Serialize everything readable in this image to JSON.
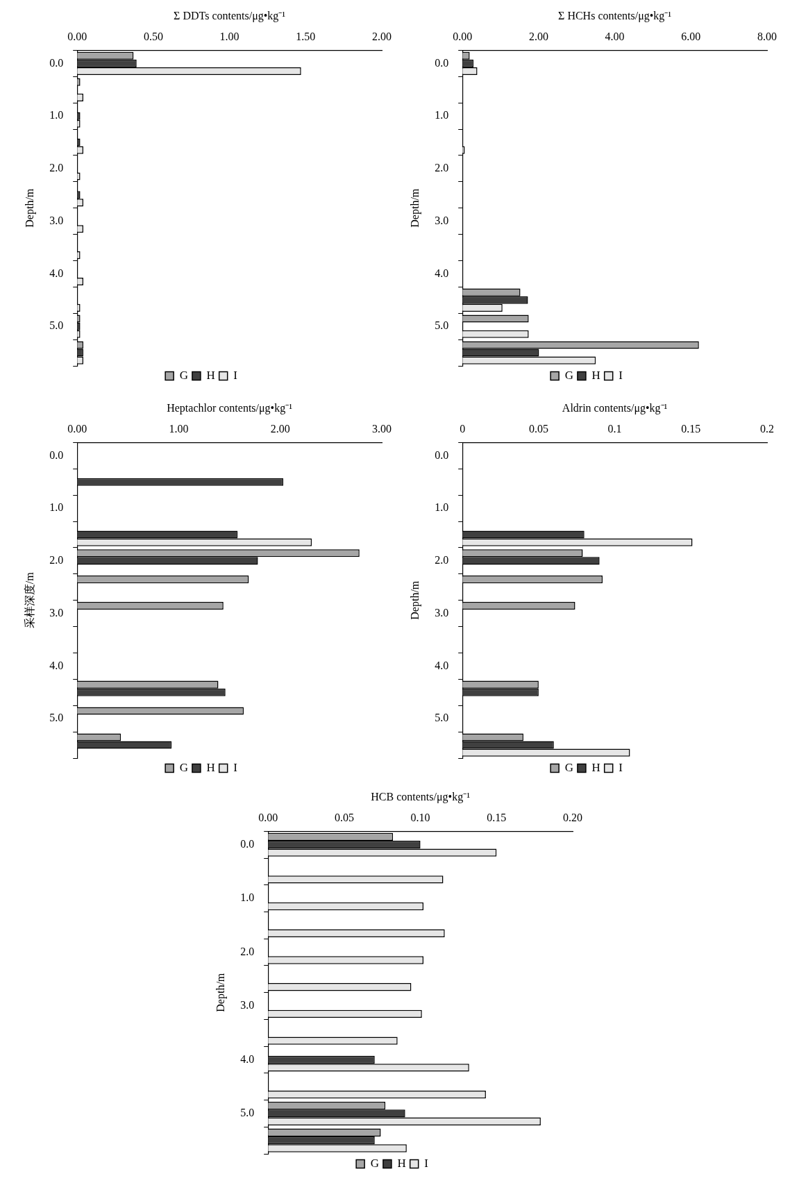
{
  "chart_data": [
    {
      "type": "bar",
      "orientation": "horizontal",
      "xlabel": "Σ DDTs contents/μg•kg⁻¹",
      "ylabel": "Depth/m",
      "legend": "bottom",
      "categories": [
        "0.0",
        null,
        "1.0",
        null,
        "2.0",
        null,
        "3.0",
        null,
        "4.0",
        null,
        "5.0",
        null
      ],
      "xlim": [
        0,
        2
      ],
      "xticks": [
        {
          "value": 0,
          "label": "0.00"
        },
        {
          "value": 0.5,
          "label": "0.50"
        },
        {
          "value": 1,
          "label": "1.00"
        },
        {
          "value": 1.5,
          "label": "1.50"
        },
        {
          "value": 2,
          "label": "2.00"
        }
      ],
      "series": [
        {
          "name": "G",
          "color": "#a6a6a6",
          "values": [
            0.37,
            0.02,
            null,
            null,
            null,
            null,
            null,
            null,
            null,
            null,
            0.02,
            0.04
          ]
        },
        {
          "name": "H",
          "color": "#404040",
          "values": [
            0.39,
            null,
            0.02,
            0.02,
            null,
            0.02,
            null,
            null,
            null,
            null,
            0.02,
            0.04
          ]
        },
        {
          "name": "I",
          "color": "#e6e6e6",
          "values": [
            1.47,
            0.04,
            0.02,
            0.04,
            0.02,
            0.04,
            0.04,
            0.02,
            0.04,
            0.02,
            0.02,
            0.04
          ]
        }
      ]
    },
    {
      "type": "bar",
      "orientation": "horizontal",
      "xlabel": "Σ HCHs contents/μg•kg⁻¹",
      "ylabel": "Depth/m",
      "legend": "bottom",
      "categories": [
        "0.0",
        null,
        "1.0",
        null,
        "2.0",
        null,
        "3.0",
        null,
        "4.0",
        null,
        "5.0",
        null
      ],
      "xlim": [
        0,
        8
      ],
      "xticks": [
        {
          "value": 0,
          "label": "0.00"
        },
        {
          "value": 2,
          "label": "2.00"
        },
        {
          "value": 4,
          "label": "4.00"
        },
        {
          "value": 6,
          "label": "6.00"
        },
        {
          "value": 8,
          "label": "8.00"
        }
      ],
      "series": [
        {
          "name": "G",
          "color": "#a6a6a6",
          "values": [
            0.19,
            null,
            null,
            null,
            null,
            null,
            null,
            null,
            null,
            1.52,
            1.74,
            6.21
          ]
        },
        {
          "name": "H",
          "color": "#404040",
          "values": [
            0.29,
            null,
            null,
            null,
            null,
            null,
            null,
            null,
            null,
            1.72,
            null,
            2.01
          ]
        },
        {
          "name": "I",
          "color": "#e6e6e6",
          "values": [
            0.39,
            null,
            null,
            0.06,
            null,
            null,
            null,
            null,
            null,
            1.05,
            1.74,
            3.5
          ]
        }
      ]
    },
    {
      "type": "bar",
      "orientation": "horizontal",
      "xlabel": "Heptachlor contents/μg•kg⁻¹",
      "ylabel": "采样深度/m",
      "legend": "bottom",
      "categories": [
        "0.0",
        null,
        "1.0",
        null,
        "2.0",
        null,
        "3.0",
        null,
        "4.0",
        null,
        "5.0",
        null
      ],
      "xlim": [
        0,
        3
      ],
      "xticks": [
        {
          "value": 0,
          "label": "0.00"
        },
        {
          "value": 1,
          "label": "1.00"
        },
        {
          "value": 2,
          "label": "2.00"
        },
        {
          "value": 3,
          "label": "3.00"
        }
      ],
      "series": [
        {
          "name": "G",
          "color": "#a6a6a6",
          "values": [
            null,
            null,
            null,
            null,
            2.78,
            1.69,
            1.44,
            null,
            null,
            1.39,
            1.64,
            0.43
          ]
        },
        {
          "name": "H",
          "color": "#404040",
          "values": [
            null,
            2.03,
            null,
            1.58,
            1.78,
            null,
            null,
            null,
            null,
            1.46,
            null,
            0.93
          ]
        },
        {
          "name": "I",
          "color": "#e6e6e6",
          "values": [
            null,
            null,
            null,
            2.31,
            null,
            null,
            null,
            null,
            null,
            null,
            null,
            null
          ]
        }
      ]
    },
    {
      "type": "bar",
      "orientation": "horizontal",
      "xlabel": "Aldrin contents/μg•kg⁻¹",
      "ylabel": "Depth/m",
      "legend": "bottom",
      "categories": [
        "0.0",
        null,
        "1.0",
        null,
        "2.0",
        null,
        "3.0",
        null,
        "4.0",
        null,
        "5.0",
        null
      ],
      "xlim": [
        0,
        0.2
      ],
      "xticks": [
        0,
        0.05,
        0.1,
        0.15,
        0.2
      ],
      "series": [
        {
          "name": "G",
          "color": "#a6a6a6",
          "values": [
            null,
            null,
            null,
            null,
            0.079,
            0.092,
            0.074,
            null,
            null,
            0.05,
            null,
            0.04
          ]
        },
        {
          "name": "H",
          "color": "#404040",
          "values": [
            null,
            null,
            null,
            0.08,
            0.09,
            null,
            null,
            null,
            null,
            0.05,
            null,
            0.06
          ]
        },
        {
          "name": "I",
          "color": "#e6e6e6",
          "values": [
            null,
            null,
            null,
            0.151,
            null,
            null,
            null,
            null,
            null,
            null,
            null,
            0.11
          ]
        }
      ]
    },
    {
      "type": "bar",
      "orientation": "horizontal",
      "xlabel": "HCB contents/μg•kg⁻¹",
      "ylabel": "Depth/m",
      "legend": "bottom",
      "categories": [
        "0.0",
        null,
        "1.0",
        null,
        "2.0",
        null,
        "3.0",
        null,
        "4.0",
        null,
        "5.0",
        null
      ],
      "xlim": [
        0,
        0.2
      ],
      "xticks": [
        {
          "value": 0,
          "label": "0.00"
        },
        {
          "value": 0.05,
          "label": "0.05"
        },
        {
          "value": 0.1,
          "label": "0.10"
        },
        {
          "value": 0.15,
          "label": "0.15"
        },
        {
          "value": 0.2,
          "label": "0.20"
        }
      ],
      "series": [
        {
          "name": "G",
          "color": "#a6a6a6",
          "values": [
            0.082,
            null,
            null,
            null,
            null,
            null,
            null,
            null,
            null,
            null,
            0.077,
            0.074
          ]
        },
        {
          "name": "H",
          "color": "#404040",
          "values": [
            0.1,
            null,
            null,
            null,
            null,
            null,
            null,
            null,
            0.07,
            null,
            0.09,
            0.07
          ]
        },
        {
          "name": "I",
          "color": "#e6e6e6",
          "values": [
            0.15,
            0.115,
            0.102,
            0.116,
            0.102,
            0.094,
            0.101,
            0.085,
            0.132,
            0.143,
            0.179,
            0.091
          ]
        }
      ]
    }
  ]
}
